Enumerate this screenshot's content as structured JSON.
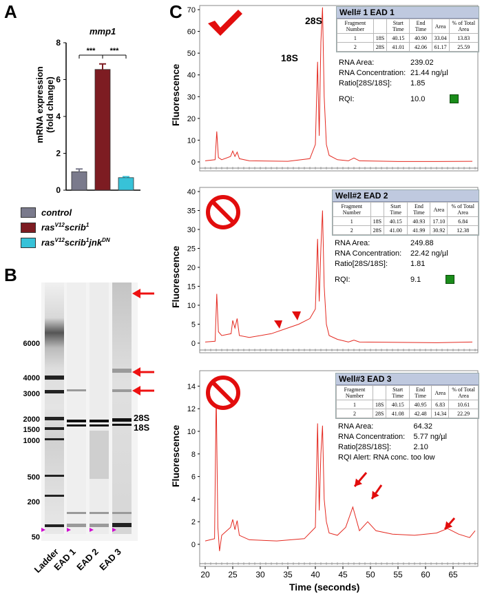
{
  "panels": {
    "a": "A",
    "b": "B",
    "c": "C"
  },
  "panel_a": {
    "title": "mmp1",
    "ylabel_line1": "mRNA expression",
    "ylabel_line2": "(fold change)",
    "significance": [
      "***",
      "***"
    ],
    "legend": [
      {
        "label_main": "control",
        "sup1": "",
        "mid": "",
        "sup2": "",
        "mid2": "",
        "sup3": "",
        "color": "#7a7a8c"
      },
      {
        "label_main": "ras",
        "sup1": "V12",
        "mid": "scrib",
        "sup2": "1",
        "mid2": "",
        "sup3": "",
        "color": "#7d1c22"
      },
      {
        "label_main": "ras",
        "sup1": "V12",
        "mid": "scrib",
        "sup2": "1",
        "mid2": "jnk",
        "sup3": "DN",
        "color": "#37c2d8"
      }
    ]
  },
  "chart_data": [
    {
      "type": "bar",
      "title": "mmp1",
      "ylabel": "mRNA expression (fold change)",
      "categories": [
        "control",
        "rasV12scrib1",
        "rasV12scrib1jnkDN"
      ],
      "values": [
        1.0,
        6.55,
        0.68
      ],
      "errors": [
        0.15,
        0.3,
        0.05
      ],
      "colors": [
        "#7a7a8c",
        "#7d1c22",
        "#37c2d8"
      ],
      "ylim": [
        0,
        8
      ],
      "yticks": [
        "0",
        "2",
        "4",
        "6",
        "8"
      ]
    },
    {
      "type": "line",
      "title": "Well# 1 EAD 1",
      "ylim": [
        0,
        70
      ],
      "yticks": [
        "0",
        "10",
        "20",
        "30",
        "40",
        "50",
        "60",
        "70"
      ],
      "x": [
        20,
        21.8,
        22.1,
        22.4,
        23,
        24.6,
        25,
        25.4,
        25.8,
        26.2,
        28,
        35,
        39,
        40.0,
        40.4,
        40.7,
        41.0,
        41.3,
        41.6,
        42.0,
        42.5,
        44,
        46,
        47,
        48,
        55,
        62,
        68.5
      ],
      "y": [
        0.5,
        1,
        14,
        2,
        1,
        2.5,
        5,
        2.5,
        4.5,
        1.5,
        0.5,
        0.3,
        1.5,
        8,
        46,
        12,
        55,
        71,
        30,
        8,
        3,
        1,
        0.5,
        1.8,
        0.5,
        0.2,
        0.2,
        0.3
      ],
      "peak_labels": [
        "28S",
        "18S"
      ]
    },
    {
      "type": "line",
      "title": "Well#2 EAD 2",
      "ylim": [
        0,
        40
      ],
      "yticks": [
        "0",
        "5",
        "10",
        "15",
        "20",
        "25",
        "30",
        "35",
        "40"
      ],
      "x": [
        20,
        21.8,
        22.1,
        22.4,
        23,
        24.7,
        25,
        25.4,
        25.8,
        26.2,
        28,
        32,
        35,
        37,
        39,
        40.0,
        40.4,
        40.7,
        41.0,
        41.3,
        41.6,
        42.0,
        42.5,
        44,
        46,
        47,
        48,
        55,
        62,
        68.5
      ],
      "y": [
        0.3,
        0.5,
        13,
        3,
        2,
        2.5,
        6,
        4,
        6.5,
        2,
        1.5,
        2.5,
        4,
        5,
        6.5,
        9,
        27.5,
        11,
        25,
        35,
        15,
        5,
        2,
        1,
        0.3,
        0.8,
        0.3,
        0.2,
        0.1,
        0.3
      ]
    },
    {
      "type": "line",
      "title": "Well#3 EAD 3",
      "ylim": [
        -1,
        15
      ],
      "yticks": [
        "0",
        "2",
        "4",
        "6",
        "8",
        "10",
        "12",
        "14"
      ],
      "x": [
        20,
        21.7,
        22.0,
        22.3,
        22.6,
        23,
        24.6,
        25,
        25.4,
        25.8,
        26.2,
        28,
        33,
        38,
        40.0,
        40.4,
        40.7,
        41.0,
        41.3,
        41.6,
        42.0,
        42.5,
        44,
        45.5,
        46.8,
        48,
        49.5,
        51,
        54,
        58,
        62,
        64,
        66,
        68,
        69
      ],
      "y": [
        0.3,
        0.5,
        13.4,
        1.5,
        -0.6,
        0.8,
        1.5,
        2.2,
        1.3,
        2.1,
        0.8,
        0.4,
        0.3,
        0.5,
        1.5,
        10.7,
        3,
        8,
        10.5,
        4,
        2,
        1,
        0.8,
        1.5,
        3.3,
        1.2,
        2,
        1.2,
        0.9,
        0.8,
        1,
        1.4,
        0.9,
        0.6,
        1.2
      ]
    }
  ],
  "panel_b": {
    "size_labels": [
      "6000",
      "4000",
      "3000",
      "2000",
      "1500",
      "1000",
      "500",
      "200",
      "50"
    ],
    "rrna_labels": [
      "28S",
      "18S"
    ],
    "lanes": [
      "Ladder",
      "EAD 1",
      "EAD 2",
      "EAD 3"
    ]
  },
  "panel_c": {
    "ylabel": "Fluorescence",
    "xlabel": "Time (seconds)",
    "xticks": [
      "20",
      "25",
      "30",
      "35",
      "40",
      "45",
      "50",
      "55",
      "60",
      "65"
    ],
    "peak_labels": [
      "28S",
      "18S"
    ],
    "table_headers": [
      "Fragment Number",
      "",
      "Start Time",
      "End Time",
      "Area",
      "% of Total Area"
    ],
    "wells": [
      {
        "title": "Well# 1 EAD 1",
        "rows": [
          [
            "1",
            "18S",
            "40.15",
            "40.90",
            "33.04",
            "13.83"
          ],
          [
            "2",
            "28S",
            "41.01",
            "42.06",
            "61.17",
            "25.59"
          ]
        ],
        "area_label": "RNA Area:",
        "area": "239.02",
        "conc_label": "RNA Concentration:",
        "conc": "21.44 ng/µl",
        "ratio_label": "Ratio[28S/18S]:",
        "ratio": "1.85",
        "rqi_label": "RQI:",
        "rqi": "10.0"
      },
      {
        "title": "Well#2 EAD 2",
        "rows": [
          [
            "1",
            "18S",
            "40.15",
            "40.93",
            "17.10",
            "6.84"
          ],
          [
            "2",
            "28S",
            "41.00",
            "41.99",
            "30.92",
            "12.38"
          ]
        ],
        "area_label": "RNA Area:",
        "area": "249.88",
        "conc_label": "RNA Concentration:",
        "conc": "22.42 ng/µl",
        "ratio_label": "Ratio[28S/18S]:",
        "ratio": "1.81",
        "rqi_label": "RQI:",
        "rqi": "9.1"
      },
      {
        "title": "Well#3 EAD 3",
        "rows": [
          [
            "1",
            "18S",
            "40.15",
            "40.95",
            "6.83",
            "10.61"
          ],
          [
            "2",
            "28S",
            "41.08",
            "42.48",
            "14.34",
            "22.29"
          ]
        ],
        "area_label": "RNA Area:",
        "area": "64.32",
        "conc_label": "RNA Concentration:",
        "conc": "5.77 ng/µl",
        "ratio_label": "Ratio[28S/18S]:",
        "ratio": "2.10",
        "alert": "RQI Alert: RNA conc. too low"
      }
    ]
  }
}
